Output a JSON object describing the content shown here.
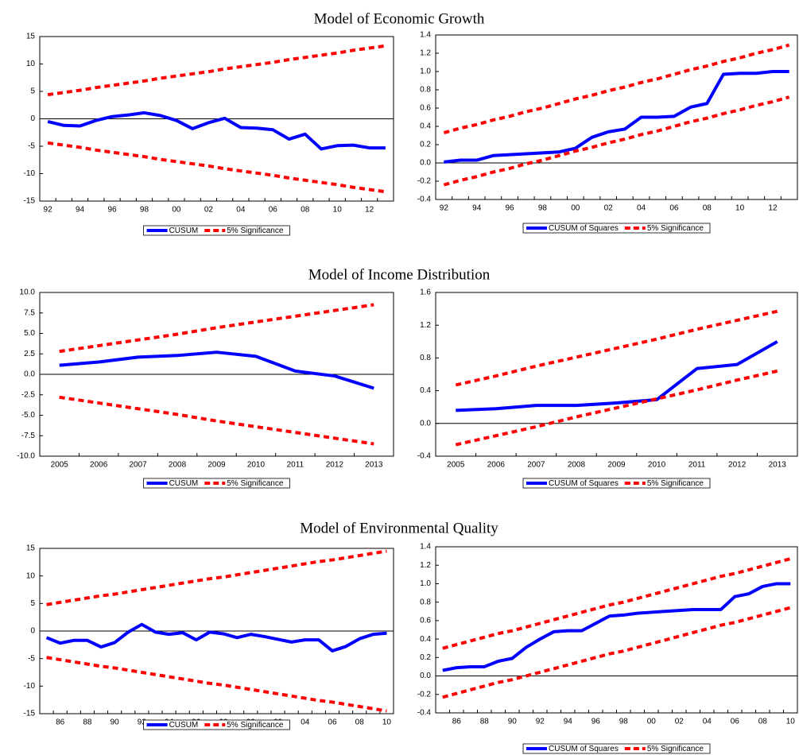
{
  "sections": [
    "Model of Economic Growth",
    "Model of Income Distribution",
    "Model of Environmental Quality"
  ],
  "chart_data": [
    {
      "type": "line",
      "zero_line": true,
      "categories": [
        "92",
        null,
        "94",
        null,
        "96",
        null,
        "98",
        null,
        "00",
        null,
        "02",
        null,
        "04",
        null,
        "06",
        null,
        "08",
        null,
        "10",
        null,
        "12",
        null
      ],
      "ylim": [
        -15,
        15
      ],
      "yticks": [
        -15,
        -10,
        -5,
        0,
        5,
        10,
        15
      ],
      "series": [
        {
          "name": "CUSUM",
          "color": "#0000ff",
          "values": [
            -0.5,
            -1.2,
            -1.3,
            -0.3,
            0.4,
            0.7,
            1.1,
            0.6,
            -0.3,
            -1.8,
            -0.7,
            0.1,
            -1.6,
            -1.7,
            -2.0,
            -3.7,
            -2.8,
            -5.5,
            -4.9,
            -4.8,
            -5.3,
            -5.3
          ]
        },
        {
          "name": "5% Significance",
          "color": "#ff0000",
          "values": [
            4.4,
            4.8,
            5.2,
            5.7,
            6.1,
            6.5,
            6.9,
            7.4,
            7.8,
            8.2,
            8.6,
            9.1,
            9.5,
            9.9,
            10.3,
            10.8,
            11.2,
            11.6,
            12.0,
            12.5,
            12.9,
            13.3
          ],
          "lower": [
            -4.4,
            -4.8,
            -5.2,
            -5.7,
            -6.1,
            -6.5,
            -6.9,
            -7.4,
            -7.8,
            -8.2,
            -8.6,
            -9.1,
            -9.5,
            -9.9,
            -10.3,
            -10.8,
            -11.2,
            -11.6,
            -12.0,
            -12.5,
            -12.9,
            -13.3
          ]
        }
      ]
    },
    {
      "type": "line",
      "zero_line": true,
      "categories": [
        "92",
        null,
        "94",
        null,
        "96",
        null,
        "98",
        null,
        "00",
        null,
        "02",
        null,
        "04",
        null,
        "06",
        null,
        "08",
        null,
        "10",
        null,
        "12",
        null
      ],
      "ylim": [
        -0.4,
        1.4
      ],
      "yticks": [
        -0.4,
        -0.2,
        {
          "value": 0,
          "label": "0.0"
        },
        0.2,
        0.4,
        0.6,
        0.8,
        {
          "value": 1,
          "label": "1.0"
        },
        1.2,
        1.4
      ],
      "series": [
        {
          "name": "CUSUM of Squares",
          "color": "#0000ff",
          "values": [
            0.01,
            0.03,
            0.03,
            0.08,
            0.09,
            0.1,
            0.11,
            0.12,
            0.16,
            0.28,
            0.34,
            0.37,
            0.5,
            0.5,
            0.51,
            0.61,
            0.65,
            0.97,
            0.98,
            0.98,
            1.0,
            1.0
          ]
        },
        {
          "name": "5% Significance",
          "color": "#ff0000",
          "values": [
            0.33,
            0.38,
            0.42,
            0.47,
            0.51,
            0.56,
            0.6,
            0.65,
            0.7,
            0.74,
            0.79,
            0.83,
            0.88,
            0.92,
            0.97,
            1.02,
            1.06,
            1.11,
            1.15,
            1.2,
            1.24,
            1.29
          ],
          "lower": [
            -0.24,
            -0.19,
            -0.15,
            -0.1,
            -0.06,
            -0.01,
            0.03,
            0.08,
            0.13,
            0.17,
            0.22,
            0.26,
            0.31,
            0.35,
            0.4,
            0.45,
            0.49,
            0.54,
            0.58,
            0.63,
            0.67,
            0.72
          ]
        }
      ]
    },
    {
      "type": "line",
      "zero_line": true,
      "categories": [
        "2005",
        "2006",
        "2007",
        "2008",
        "2009",
        "2010",
        "2011",
        "2012",
        "2013"
      ],
      "ylim": [
        -10,
        10
      ],
      "yticks": [
        {
          "value": -10,
          "label": "-10.0"
        },
        -7.5,
        {
          "value": -5,
          "label": "-5.0"
        },
        -2.5,
        {
          "value": 0,
          "label": "0.0"
        },
        2.5,
        {
          "value": 5,
          "label": "5.0"
        },
        7.5,
        {
          "value": 10,
          "label": "10.0"
        }
      ],
      "series": [
        {
          "name": "CUSUM",
          "color": "#0000ff",
          "values": [
            1.1,
            1.5,
            2.1,
            2.3,
            2.7,
            2.2,
            0.4,
            -0.2,
            -1.7
          ]
        },
        {
          "name": "5% Significance",
          "color": "#ff0000",
          "values": [
            2.8,
            3.5,
            4.2,
            4.9,
            5.7,
            6.4,
            7.1,
            7.8,
            8.5
          ],
          "lower": [
            -2.8,
            -3.5,
            -4.2,
            -4.9,
            -5.7,
            -6.4,
            -7.1,
            -7.8,
            -8.5
          ]
        }
      ]
    },
    {
      "type": "line",
      "zero_line": true,
      "categories": [
        "2005",
        "2006",
        "2007",
        "2008",
        "2009",
        "2010",
        "2011",
        "2012",
        "2013"
      ],
      "ylim": [
        -0.4,
        1.6
      ],
      "yticks": [
        -0.4,
        {
          "value": 0,
          "label": "0.0"
        },
        0.4,
        0.8,
        1.2,
        1.6
      ],
      "series": [
        {
          "name": "CUSUM of Squares",
          "color": "#0000ff",
          "values": [
            0.16,
            0.18,
            0.22,
            0.22,
            0.25,
            0.29,
            0.67,
            0.72,
            1.0
          ]
        },
        {
          "name": "5% Significance",
          "color": "#ff0000",
          "values": [
            0.47,
            0.58,
            0.7,
            0.81,
            0.92,
            1.03,
            1.15,
            1.26,
            1.37
          ],
          "lower": [
            -0.26,
            -0.15,
            -0.04,
            0.08,
            0.19,
            0.3,
            0.41,
            0.53,
            0.64
          ]
        }
      ]
    },
    {
      "type": "line",
      "zero_line": true,
      "categories": [
        null,
        "86",
        null,
        "88",
        null,
        "90",
        null,
        "92",
        null,
        "94",
        null,
        "96",
        null,
        "98",
        null,
        "00",
        null,
        "02",
        null,
        "04",
        null,
        "06",
        null,
        "08",
        null,
        "10"
      ],
      "ylim": [
        -15,
        15
      ],
      "yticks": [
        -15,
        -10,
        -5,
        0,
        5,
        10,
        15
      ],
      "series": [
        {
          "name": "CUSUM",
          "color": "#0000ff",
          "values": [
            -1.2,
            -2.2,
            -1.7,
            -1.7,
            -2.9,
            -2.1,
            -0.2,
            1.2,
            -0.2,
            -0.6,
            -0.3,
            -1.6,
            -0.2,
            -0.5,
            -1.2,
            -0.6,
            -1.0,
            -1.5,
            -2.0,
            -1.6,
            -1.6,
            -3.6,
            -2.8,
            -1.4,
            -0.6,
            -0.4
          ]
        },
        {
          "name": "5% Significance",
          "color": "#ff0000",
          "values": [
            4.8,
            5.2,
            5.6,
            6.0,
            6.4,
            6.7,
            7.1,
            7.5,
            7.9,
            8.3,
            8.7,
            9.1,
            9.5,
            9.8,
            10.2,
            10.6,
            11.0,
            11.4,
            11.8,
            12.2,
            12.6,
            12.9,
            13.3,
            13.7,
            14.1,
            14.5
          ],
          "lower": [
            -4.8,
            -5.2,
            -5.6,
            -6.0,
            -6.4,
            -6.7,
            -7.1,
            -7.5,
            -7.9,
            -8.3,
            -8.7,
            -9.1,
            -9.5,
            -9.8,
            -10.2,
            -10.6,
            -11.0,
            -11.4,
            -11.8,
            -12.2,
            -12.6,
            -12.9,
            -13.3,
            -13.7,
            -14.1,
            -14.5
          ]
        }
      ]
    },
    {
      "type": "line",
      "zero_line": true,
      "categories": [
        null,
        "86",
        null,
        "88",
        null,
        "90",
        null,
        "92",
        null,
        "94",
        null,
        "96",
        null,
        "98",
        null,
        "00",
        null,
        "02",
        null,
        "04",
        null,
        "06",
        null,
        "08",
        null,
        "10"
      ],
      "ylim": [
        -0.4,
        1.4
      ],
      "yticks": [
        -0.4,
        -0.2,
        {
          "value": 0,
          "label": "0.0"
        },
        0.2,
        0.4,
        0.6,
        0.8,
        {
          "value": 1,
          "label": "1.0"
        },
        1.2,
        1.4
      ],
      "series": [
        {
          "name": "CUSUM of Squares",
          "color": "#0000ff",
          "values": [
            0.06,
            0.09,
            0.1,
            0.1,
            0.16,
            0.19,
            0.31,
            0.4,
            0.48,
            0.49,
            0.49,
            0.57,
            0.65,
            0.66,
            0.68,
            0.69,
            0.7,
            0.71,
            0.72,
            0.72,
            0.72,
            0.86,
            0.89,
            0.97,
            1.0,
            1.0
          ]
        },
        {
          "name": "5% Significance",
          "color": "#ff0000",
          "values": [
            0.3,
            0.34,
            0.38,
            0.42,
            0.46,
            0.49,
            0.53,
            0.57,
            0.61,
            0.65,
            0.69,
            0.73,
            0.77,
            0.8,
            0.84,
            0.88,
            0.92,
            0.96,
            1.0,
            1.04,
            1.08,
            1.11,
            1.15,
            1.19,
            1.23,
            1.27
          ],
          "lower": [
            -0.23,
            -0.19,
            -0.15,
            -0.11,
            -0.07,
            -0.04,
            0.0,
            0.04,
            0.08,
            0.12,
            0.16,
            0.2,
            0.24,
            0.27,
            0.31,
            0.35,
            0.39,
            0.43,
            0.47,
            0.51,
            0.55,
            0.58,
            0.62,
            0.66,
            0.7,
            0.74
          ]
        }
      ]
    }
  ]
}
